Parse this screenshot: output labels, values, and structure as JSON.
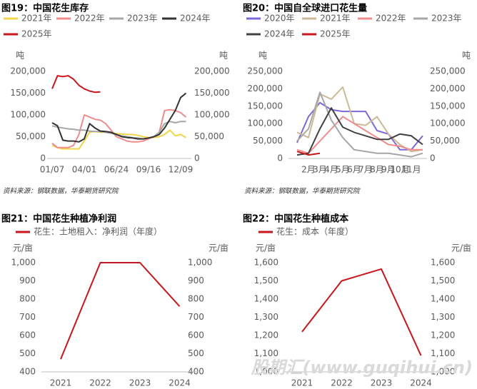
{
  "chart_data": [
    {
      "type": "line",
      "title": "图19：中国花生库存",
      "y_label": "吨",
      "y2_label": "吨",
      "source": "资料来源：钢联数据，华泰期货研究院",
      "categories": [
        "01/07",
        null,
        null,
        null,
        null,
        null,
        "04/01",
        null,
        null,
        null,
        null,
        null,
        "06/24",
        null,
        null,
        null,
        null,
        null,
        "09/16",
        null,
        null,
        null,
        null,
        null,
        "12/09",
        null
      ],
      "ylim": [
        0,
        200000
      ],
      "yticks": [
        0,
        {
          "value": 50000,
          "label": "50,000"
        },
        {
          "value": 100000,
          "label": "100,000"
        },
        {
          "value": 150000,
          "label": "150,000"
        },
        {
          "value": 200000,
          "label": "200,000"
        }
      ],
      "y2lim": [
        0,
        200000
      ],
      "y2ticks": [
        0,
        {
          "value": 50000,
          "label": "50,000"
        },
        {
          "value": 100000,
          "label": "100,000"
        },
        {
          "value": 150000,
          "label": "150,000"
        },
        {
          "value": 200000,
          "label": "200,000"
        }
      ],
      "series": [
        {
          "name": "2021年",
          "color": "#f0d44a",
          "values": [
            30000,
            25000,
            22000,
            22000,
            22000,
            22000,
            40000,
            60000,
            62000,
            60000,
            60000,
            58000,
            57000,
            56000,
            55000,
            55000,
            53000,
            50000,
            48000,
            48000,
            50000,
            55000,
            65000,
            52000,
            55000,
            48000
          ]
        },
        {
          "name": "2022年",
          "color": "#f08c8c",
          "values": [
            35000,
            25000,
            25000,
            25000,
            30000,
            55000,
            100000,
            95000,
            90000,
            88000,
            80000,
            65000,
            50000,
            45000,
            40000,
            38000,
            38000,
            40000,
            45000,
            50000,
            60000,
            110000,
            112000,
            110000,
            105000,
            95000
          ]
        },
        {
          "name": "2023年",
          "color": "#a6a6a6",
          "values": [
            75000,
            72000,
            70000,
            68000,
            67000,
            65000,
            65000,
            63000,
            62000,
            62000,
            60000,
            58000,
            55000,
            52000,
            50000,
            48000,
            47000,
            45000,
            47000,
            50000,
            60000,
            80000,
            85000,
            82000,
            85000,
            85000
          ]
        },
        {
          "name": "2024年",
          "color": "#333333",
          "values": [
            82000,
            75000,
            42000,
            40000,
            40000,
            38000,
            45000,
            80000,
            70000,
            63000,
            62000,
            60000,
            55000,
            50000,
            48000,
            47000,
            45000,
            45000,
            47000,
            50000,
            55000,
            70000,
            90000,
            110000,
            140000,
            150000
          ]
        },
        {
          "name": "2025年",
          "color": "#c8161d",
          "values": [
            160000,
            190000,
            188000,
            190000,
            182000,
            168000,
            160000,
            155000,
            152000,
            153000,
            null,
            null,
            null,
            null,
            null,
            null,
            null,
            null,
            null,
            null,
            null,
            null,
            null,
            null,
            null,
            null
          ]
        }
      ]
    },
    {
      "type": "line",
      "title": "图20：中国自全球进口花生量",
      "y_label": "吨",
      "y2_label": "吨",
      "source": "资料来源：钢联数据，华泰期货研究院",
      "categories": [
        null,
        "2月",
        "3月",
        "4月",
        "5月",
        "6月",
        "7月",
        "8月",
        "9月",
        "10月",
        "11月",
        null
      ],
      "ylim": [
        0,
        250000
      ],
      "yticks": [
        0,
        {
          "value": 50000,
          "label": "50,000"
        },
        {
          "value": 100000,
          "label": "100,000"
        },
        {
          "value": 150000,
          "label": "150,000"
        },
        {
          "value": 200000,
          "label": "200,000"
        },
        {
          "value": 250000,
          "label": "250,000"
        }
      ],
      "y2lim": [
        0,
        250000
      ],
      "y2ticks": [
        0,
        {
          "value": 50000,
          "label": "50,000"
        },
        {
          "value": 100000,
          "label": "100,000"
        },
        {
          "value": 150000,
          "label": "150,000"
        },
        {
          "value": 200000,
          "label": "200,000"
        },
        {
          "value": 250000,
          "label": "250,000"
        }
      ],
      "series": [
        {
          "name": "2020年",
          "color": "#7b68d9",
          "values": [
            45000,
            120000,
            160000,
            140000,
            135000,
            135000,
            135000,
            80000,
            70000,
            25000,
            25000,
            65000
          ]
        },
        {
          "name": "2021年",
          "color": "#cdb995",
          "values": [
            75000,
            60000,
            185000,
            170000,
            205000,
            100000,
            95000,
            120000,
            70000,
            40000,
            20000,
            25000
          ]
        },
        {
          "name": "2022年",
          "color": "#f08c8c",
          "values": [
            25000,
            15000,
            50000,
            85000,
            120000,
            100000,
            80000,
            60000,
            40000,
            35000,
            25000,
            25000
          ]
        },
        {
          "name": "2023年",
          "color": "#a6a6a6",
          "values": [
            50000,
            85000,
            190000,
            110000,
            60000,
            25000,
            20000,
            15000,
            15000,
            10000,
            5000,
            15000
          ]
        },
        {
          "name": "2024年",
          "color": "#404040",
          "values": [
            10000,
            15000,
            85000,
            145000,
            90000,
            75000,
            65000,
            55000,
            55000,
            70000,
            65000,
            40000
          ]
        },
        {
          "name": "2025年",
          "color": "#c8161d",
          "values": [
            20000,
            10000,
            15000,
            null,
            null,
            null,
            null,
            null,
            null,
            null,
            null,
            null
          ]
        }
      ]
    },
    {
      "type": "line",
      "title": "图21：中国花生种植净利润",
      "y_label": "元/亩",
      "y2_label": "元/亩",
      "categories": [
        "2021",
        "2022",
        "2023",
        "2024"
      ],
      "ylim": [
        400,
        1000
      ],
      "yticks": [
        400,
        500,
        600,
        700,
        800,
        900,
        {
          "value": 1000,
          "label": "1,000"
        }
      ],
      "y2lim": [
        400,
        1000
      ],
      "y2ticks": [
        400,
        500,
        600,
        700,
        800,
        900,
        {
          "value": 1000,
          "label": "1,000"
        }
      ],
      "series": [
        {
          "name": "花生：土地租入：净利润（年度）",
          "color": "#c8161d",
          "values": [
            470,
            1000,
            1000,
            760
          ]
        }
      ]
    },
    {
      "type": "line",
      "title": "图22：中国花生种植成本",
      "y_label": "元/亩",
      "y2_label": "元/亩",
      "categories": [
        "2021",
        "2022",
        "2023",
        "2024"
      ],
      "ylim": [
        1000,
        1600
      ],
      "yticks": [
        {
          "value": 1000,
          "label": "1,000"
        },
        {
          "value": 1100,
          "label": "1,100"
        },
        {
          "value": 1200,
          "label": "1,200"
        },
        {
          "value": 1300,
          "label": "1,300"
        },
        {
          "value": 1400,
          "label": "1,400"
        },
        {
          "value": 1500,
          "label": "1,500"
        },
        {
          "value": 1600,
          "label": "1,600"
        }
      ],
      "y2lim": [
        1000,
        1600
      ],
      "y2ticks": [
        {
          "value": 1000,
          "label": "1,000"
        },
        {
          "value": 1100,
          "label": "1,100"
        },
        {
          "value": 1200,
          "label": "1,200"
        },
        {
          "value": 1300,
          "label": "1,300"
        },
        {
          "value": 1400,
          "label": "1,400"
        },
        {
          "value": 1500,
          "label": "1,500"
        },
        {
          "value": 1600,
          "label": "1,600"
        }
      ],
      "series": [
        {
          "name": "花生：成本（年度）",
          "color": "#c8161d",
          "values": [
            1220,
            1500,
            1565,
            1090
          ]
        }
      ]
    }
  ],
  "watermark": "股期汇(www.guqihui.cn)"
}
